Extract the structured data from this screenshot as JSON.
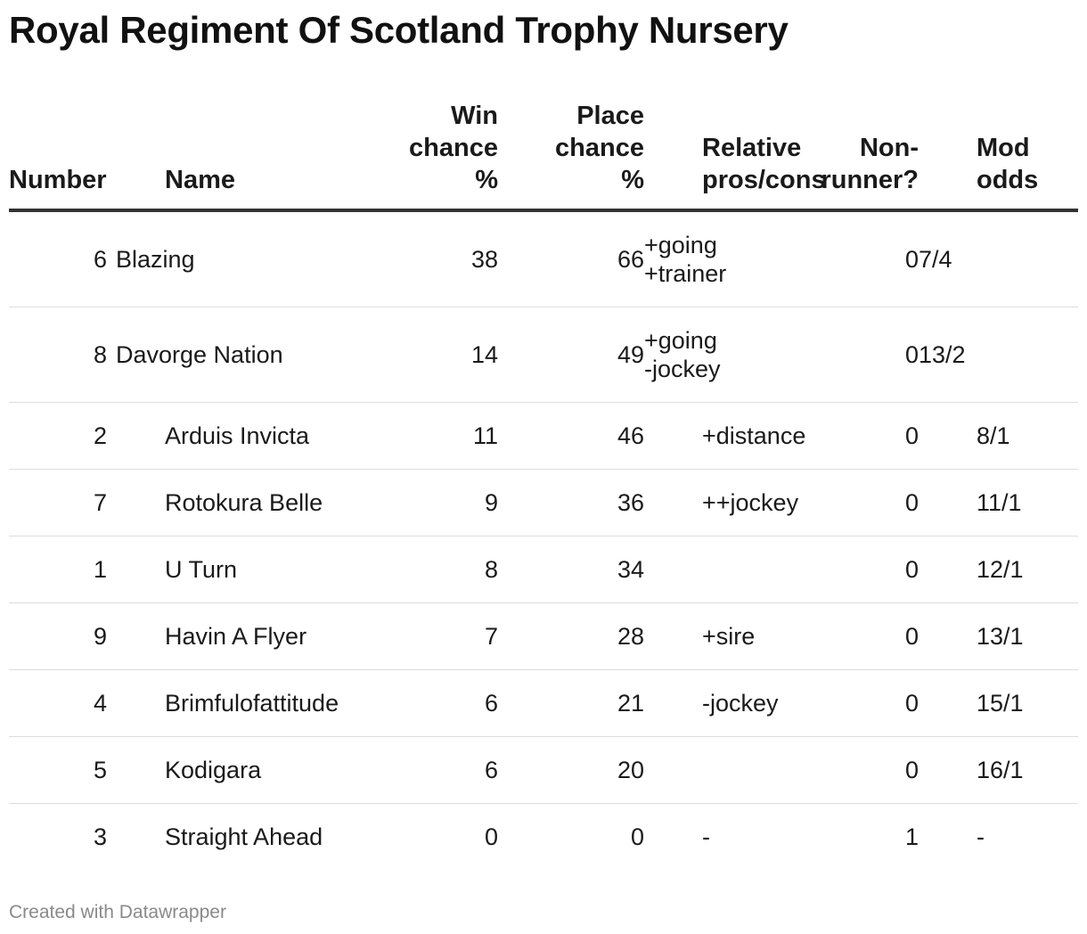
{
  "title": "Royal Regiment Of Scotland Trophy Nursery",
  "chart_data": {
    "type": "table",
    "title": "Royal Regiment Of Scotland Trophy Nursery",
    "columns": [
      "Number",
      "Name",
      "Win chance %",
      "Place chance %",
      "Relative pros/cons",
      "Non-runner?",
      "Mod odds"
    ],
    "header": {
      "number": "Number",
      "name": "Name",
      "win": [
        "Win",
        "chance",
        "%"
      ],
      "place": [
        "Place",
        "chance",
        "%"
      ],
      "relative": [
        "Relative",
        "pros/cons"
      ],
      "nonrunner": [
        "Non-",
        "runner?"
      ],
      "odds": [
        "Mod",
        "odds"
      ]
    },
    "rows": [
      {
        "number": "6",
        "name": "Blazing",
        "win": "38",
        "place": "66",
        "relative": [
          "+going",
          "+trainer"
        ],
        "nonrunner": "0",
        "odds": "7/4"
      },
      {
        "number": "8",
        "name": "Davorge Nation",
        "win": "14",
        "place": "49",
        "relative": [
          "+going",
          "-jockey"
        ],
        "nonrunner": "0",
        "odds": "13/2"
      },
      {
        "number": "2",
        "name": "Arduis Invicta",
        "win": "11",
        "place": "46",
        "relative": [
          "+distance"
        ],
        "nonrunner": "0",
        "odds": "8/1"
      },
      {
        "number": "7",
        "name": "Rotokura Belle",
        "win": "9",
        "place": "36",
        "relative": [
          "++jockey"
        ],
        "nonrunner": "0",
        "odds": "11/1"
      },
      {
        "number": "1",
        "name": "U Turn",
        "win": "8",
        "place": "34",
        "relative": [
          ""
        ],
        "nonrunner": "0",
        "odds": "12/1"
      },
      {
        "number": "9",
        "name": "Havin A Flyer",
        "win": "7",
        "place": "28",
        "relative": [
          "+sire"
        ],
        "nonrunner": "0",
        "odds": "13/1"
      },
      {
        "number": "4",
        "name": "Brimfulofattitude",
        "win": "6",
        "place": "21",
        "relative": [
          "-jockey"
        ],
        "nonrunner": "0",
        "odds": "15/1"
      },
      {
        "number": "5",
        "name": "Kodigara",
        "win": "6",
        "place": "20",
        "relative": [
          ""
        ],
        "nonrunner": "0",
        "odds": "16/1"
      },
      {
        "number": "3",
        "name": "Straight Ahead",
        "win": "0",
        "place": "0",
        "relative": [
          "-"
        ],
        "nonrunner": "1",
        "odds": "-"
      }
    ]
  },
  "footer": "Created with Datawrapper"
}
